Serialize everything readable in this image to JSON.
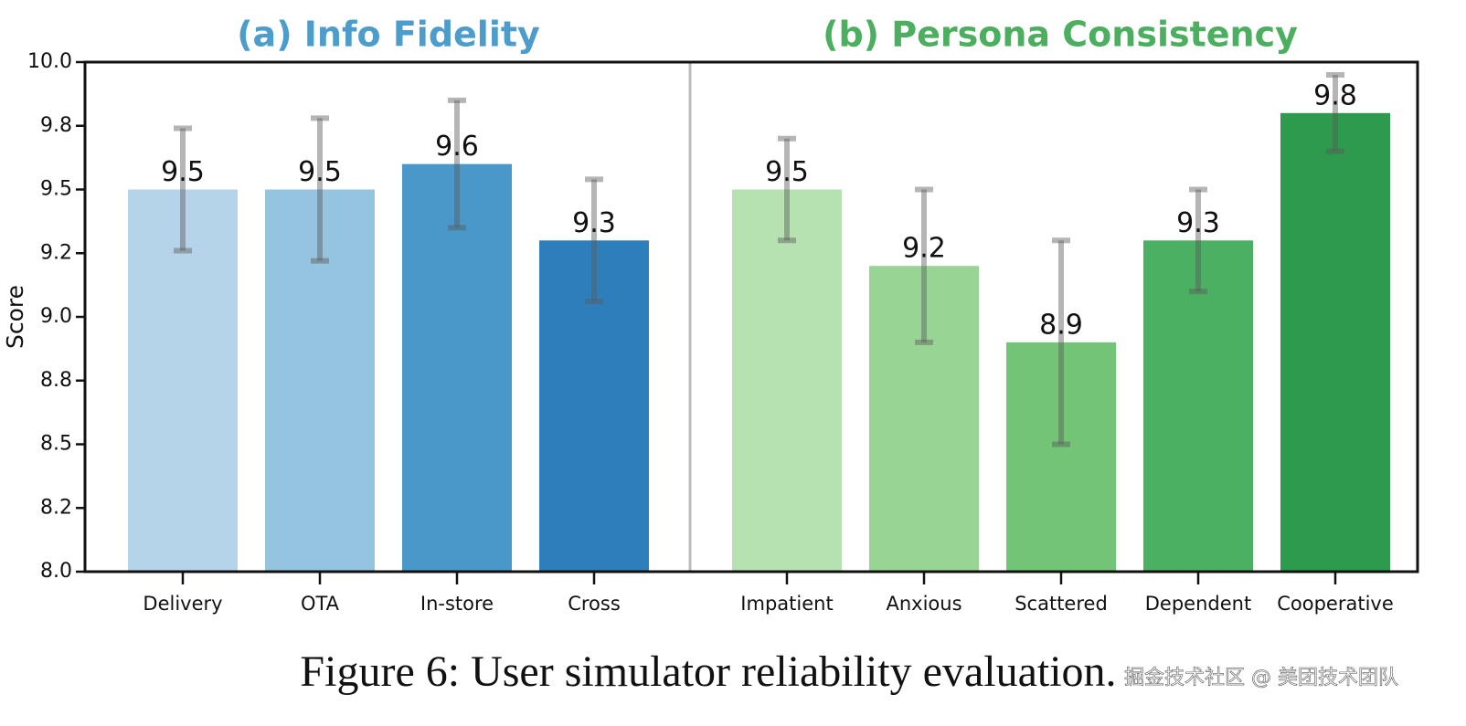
{
  "chart_data": [
    {
      "type": "bar",
      "title": "(a) Info Fidelity",
      "title_color": "#4c9ccc",
      "ylabel": "Score",
      "categories": [
        "Delivery",
        "OTA",
        "In-store",
        "Cross"
      ],
      "values": [
        9.5,
        9.5,
        9.6,
        9.3
      ],
      "errors": [
        0.24,
        0.28,
        0.25,
        0.24
      ],
      "colors": [
        "#b6d4e9",
        "#94c4df",
        "#4a98c9",
        "#2e7ebc"
      ],
      "ylim": [
        8.0,
        10.0
      ],
      "yticks": [
        {
          "value": 8.0,
          "label": "8.0"
        },
        {
          "value": 8.25,
          "label": "8.2"
        },
        {
          "value": 8.5,
          "label": "8.5"
        },
        {
          "value": 8.75,
          "label": "8.8"
        },
        {
          "value": 9.0,
          "label": "9.0"
        },
        {
          "value": 9.25,
          "label": "9.2"
        },
        {
          "value": 9.5,
          "label": "9.5"
        },
        {
          "value": 9.75,
          "label": "9.8"
        },
        {
          "value": 10.0,
          "label": "10.0"
        }
      ]
    },
    {
      "type": "bar",
      "title": "(b) Persona Consistency",
      "title_color": "#4cae5f",
      "categories": [
        "Impatient",
        "Anxious",
        "Scattered",
        "Dependent",
        "Cooperative"
      ],
      "values": [
        9.5,
        9.2,
        8.9,
        9.3,
        9.8
      ],
      "errors": [
        0.2,
        0.3,
        0.4,
        0.2,
        0.15
      ],
      "colors": [
        "#b5e2b0",
        "#98d594",
        "#73c476",
        "#4bb062",
        "#2d9a4e"
      ],
      "ylim": [
        8.0,
        10.0
      ]
    }
  ],
  "caption": "Figure 6: User simulator reliability evaluation.",
  "watermark": "掘金技术社区 @ 美团技术团队"
}
